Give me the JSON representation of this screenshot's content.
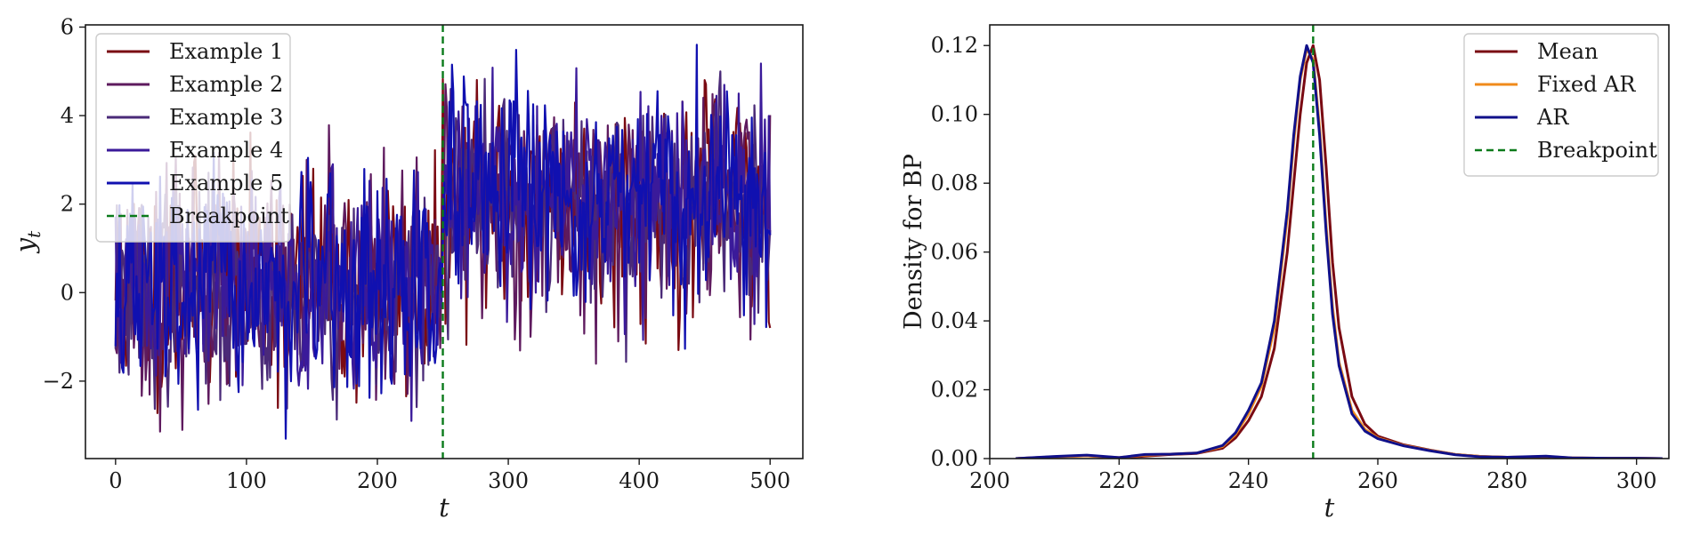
{
  "chart_data": [
    {
      "type": "line",
      "xlabel": "t",
      "ylabel": "y_t",
      "xlim": [
        -23,
        525
      ],
      "ylim": [
        -3.75,
        6.05
      ],
      "xticks": [
        0,
        100,
        200,
        300,
        400,
        500
      ],
      "yticks": [
        -2,
        0,
        2,
        4,
        6
      ],
      "ytick_labels": [
        "−2",
        "0",
        "2",
        "4",
        "6"
      ],
      "legend_position": "upper left",
      "breakpoint_x": 250,
      "series": [
        {
          "name": "Example 1",
          "color": "#7a0a12",
          "seed": 11,
          "pre_mean": 0.2,
          "post_mean": 2.1,
          "sd": 1.25
        },
        {
          "name": "Example 2",
          "color": "#5e1a5e",
          "seed": 23,
          "pre_mean": 0.1,
          "post_mean": 2.0,
          "sd": 1.2
        },
        {
          "name": "Example 3",
          "color": "#4a2a78",
          "seed": 37,
          "pre_mean": 0.0,
          "post_mean": 2.0,
          "sd": 1.15
        },
        {
          "name": "Example 4",
          "color": "#3a1a9a",
          "seed": 51,
          "pre_mean": 0.1,
          "post_mean": 2.1,
          "sd": 1.2
        },
        {
          "name": "Example 5",
          "color": "#1010b0",
          "seed": 67,
          "pre_mean": 0.0,
          "post_mean": 2.0,
          "sd": 1.2
        }
      ],
      "breakpoint_label": "Breakpoint",
      "breakpoint_color": "#0a7a1a"
    },
    {
      "type": "line",
      "xlabel": "t",
      "ylabel": "Density for BP",
      "xlim": [
        200,
        305
      ],
      "ylim": [
        0.0,
        0.126
      ],
      "xticks": [
        200,
        220,
        240,
        260,
        280,
        300
      ],
      "yticks": [
        0.0,
        0.02,
        0.04,
        0.06,
        0.08,
        0.1,
        0.12
      ],
      "ytick_labels": [
        "0.00",
        "0.02",
        "0.04",
        "0.06",
        "0.08",
        "0.10",
        "0.12"
      ],
      "legend_position": "upper right",
      "breakpoint_x": 250,
      "x": [
        204,
        210,
        215,
        220,
        224,
        228,
        232,
        236,
        238,
        240,
        242,
        244,
        246,
        247,
        248,
        249,
        250,
        251,
        252,
        253,
        254,
        256,
        258,
        260,
        264,
        268,
        272,
        276,
        280,
        286,
        290,
        296,
        300,
        304
      ],
      "series": [
        {
          "name": "Mean",
          "color": "#7a0a12",
          "values": [
            0.0,
            0.0005,
            0.0008,
            0.0002,
            0.0007,
            0.0012,
            0.0015,
            0.003,
            0.006,
            0.011,
            0.018,
            0.032,
            0.06,
            0.08,
            0.1,
            0.115,
            0.12,
            0.11,
            0.085,
            0.057,
            0.038,
            0.018,
            0.01,
            0.0065,
            0.004,
            0.0025,
            0.0012,
            0.0006,
            0.0004,
            0.0003,
            0.0002,
            0.0001,
            0.0001,
            0.0
          ]
        },
        {
          "name": "Fixed AR",
          "color": "#f08a1a",
          "values": [
            0.0,
            0.0005,
            0.0008,
            0.0003,
            0.001,
            0.0013,
            0.0016,
            0.0035,
            0.007,
            0.013,
            0.021,
            0.038,
            0.07,
            0.092,
            0.11,
            0.119,
            0.116,
            0.096,
            0.068,
            0.044,
            0.028,
            0.014,
            0.0085,
            0.006,
            0.0038,
            0.0024,
            0.0012,
            0.0006,
            0.0004,
            0.0006,
            0.0002,
            0.0001,
            0.0001,
            0.0
          ]
        },
        {
          "name": "AR",
          "color": "#10108a",
          "values": [
            0.0,
            0.0006,
            0.001,
            0.0003,
            0.0012,
            0.0013,
            0.0016,
            0.0038,
            0.0075,
            0.014,
            0.022,
            0.04,
            0.072,
            0.094,
            0.111,
            0.12,
            0.115,
            0.094,
            0.066,
            0.042,
            0.027,
            0.013,
            0.008,
            0.0058,
            0.0037,
            0.0023,
            0.0011,
            0.0005,
            0.0004,
            0.0007,
            0.0002,
            0.0001,
            0.0001,
            0.0
          ]
        }
      ],
      "breakpoint_label": "Breakpoint",
      "breakpoint_color": "#0a7a1a"
    }
  ]
}
